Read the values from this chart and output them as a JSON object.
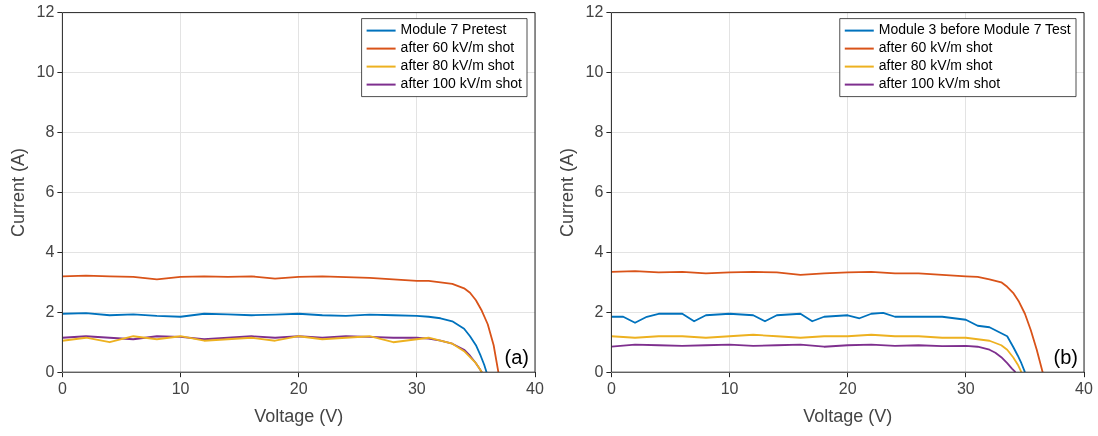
{
  "chart_data": [
    {
      "type": "line",
      "xlabel": "Voltage (V)",
      "ylabel": "Current (A)",
      "xlim": [
        0,
        40
      ],
      "xticks": [
        0,
        10,
        20,
        30,
        40
      ],
      "ylim": [
        0,
        12
      ],
      "yticks": [
        0,
        2,
        4,
        6,
        8,
        10,
        12
      ],
      "grid": true,
      "legend": "top right",
      "marker": "none",
      "annotations": [
        "(a)"
      ],
      "series": [
        {
          "name": "Module 7 Pretest",
          "color": "#0072bd",
          "x": [
            0,
            2,
            4,
            6,
            8,
            10,
            12,
            14,
            16,
            18,
            20,
            22,
            24,
            26,
            28,
            30,
            31,
            32,
            33,
            34,
            34.5,
            35,
            35.4,
            35.7,
            35.9
          ],
          "values": [
            1.95,
            1.97,
            1.9,
            1.93,
            1.88,
            1.85,
            1.95,
            1.93,
            1.9,
            1.92,
            1.95,
            1.9,
            1.88,
            1.92,
            1.9,
            1.88,
            1.85,
            1.8,
            1.7,
            1.45,
            1.2,
            0.9,
            0.55,
            0.25,
            0
          ]
        },
        {
          "name": "after 60 kV/m shot",
          "color": "#d95319",
          "x": [
            0,
            2,
            4,
            6,
            8,
            10,
            12,
            14,
            16,
            18,
            20,
            22,
            24,
            26,
            28,
            30,
            31,
            32,
            33,
            34,
            34.5,
            35,
            35.5,
            36,
            36.5,
            36.9
          ],
          "values": [
            3.2,
            3.22,
            3.2,
            3.18,
            3.1,
            3.18,
            3.2,
            3.18,
            3.2,
            3.12,
            3.18,
            3.2,
            3.17,
            3.15,
            3.1,
            3.05,
            3.05,
            3.0,
            2.95,
            2.8,
            2.65,
            2.4,
            2.05,
            1.6,
            0.9,
            0
          ]
        },
        {
          "name": "after 80 kV/m shot",
          "color": "#edb120",
          "x": [
            0,
            2,
            4,
            6,
            8,
            10,
            12,
            14,
            16,
            18,
            20,
            22,
            24,
            26,
            28,
            30,
            31,
            32,
            33,
            34,
            34.5,
            35,
            35.3,
            35.5
          ],
          "values": [
            1.05,
            1.15,
            1.0,
            1.2,
            1.1,
            1.2,
            1.05,
            1.1,
            1.15,
            1.05,
            1.2,
            1.1,
            1.15,
            1.2,
            1.0,
            1.1,
            1.15,
            1.05,
            0.95,
            0.7,
            0.5,
            0.3,
            0.12,
            0
          ]
        },
        {
          "name": "after 100 kV/m shot",
          "color": "#7e2f8e",
          "x": [
            0,
            2,
            4,
            6,
            8,
            10,
            12,
            14,
            16,
            18,
            20,
            22,
            24,
            26,
            28,
            30,
            31,
            32,
            33,
            34,
            34.5,
            35,
            35.3,
            35.5
          ],
          "values": [
            1.15,
            1.2,
            1.15,
            1.1,
            1.2,
            1.18,
            1.1,
            1.15,
            1.2,
            1.15,
            1.2,
            1.15,
            1.2,
            1.18,
            1.15,
            1.15,
            1.12,
            1.05,
            0.95,
            0.75,
            0.55,
            0.3,
            0.12,
            0
          ]
        }
      ]
    },
    {
      "type": "line",
      "xlabel": "Voltage (V)",
      "ylabel": "Current (A)",
      "xlim": [
        0,
        40
      ],
      "xticks": [
        0,
        10,
        20,
        30,
        40
      ],
      "ylim": [
        0,
        12
      ],
      "yticks": [
        0,
        2,
        4,
        6,
        8,
        10,
        12
      ],
      "grid": true,
      "legend": "top right",
      "marker": "none",
      "annotations": [
        "(b)"
      ],
      "series": [
        {
          "name": "Module 3 before Module 7 Test",
          "color": "#0072bd",
          "x": [
            0,
            1,
            2,
            3,
            4,
            6,
            7,
            8,
            10,
            12,
            13,
            14,
            16,
            17,
            18,
            20,
            21,
            22,
            23,
            24,
            26,
            28,
            30,
            31,
            32,
            33,
            33.5,
            34,
            34.4,
            34.7,
            35
          ],
          "values": [
            1.85,
            1.85,
            1.65,
            1.85,
            1.95,
            1.95,
            1.7,
            1.9,
            1.95,
            1.9,
            1.7,
            1.9,
            1.95,
            1.7,
            1.85,
            1.9,
            1.8,
            1.95,
            1.98,
            1.85,
            1.85,
            1.85,
            1.75,
            1.55,
            1.5,
            1.3,
            1.2,
            0.85,
            0.55,
            0.3,
            0
          ]
        },
        {
          "name": "after 60 kV/m shot",
          "color": "#d95319",
          "x": [
            0,
            2,
            4,
            6,
            8,
            10,
            12,
            14,
            16,
            18,
            20,
            22,
            24,
            26,
            28,
            30,
            31,
            32,
            33,
            33.5,
            34,
            34.5,
            35,
            35.5,
            36,
            36.5
          ],
          "values": [
            3.35,
            3.37,
            3.33,
            3.35,
            3.3,
            3.33,
            3.35,
            3.33,
            3.25,
            3.3,
            3.33,
            3.35,
            3.3,
            3.3,
            3.25,
            3.2,
            3.18,
            3.1,
            3.0,
            2.85,
            2.65,
            2.35,
            1.95,
            1.4,
            0.75,
            0
          ]
        },
        {
          "name": "after 80 kV/m shot",
          "color": "#edb120",
          "x": [
            0,
            2,
            4,
            6,
            8,
            10,
            12,
            14,
            16,
            18,
            20,
            22,
            24,
            26,
            28,
            30,
            31,
            32,
            33,
            33.5,
            34,
            34.4,
            34.7
          ],
          "values": [
            1.2,
            1.15,
            1.2,
            1.2,
            1.15,
            1.2,
            1.25,
            1.2,
            1.15,
            1.2,
            1.2,
            1.25,
            1.2,
            1.2,
            1.15,
            1.15,
            1.1,
            1.05,
            0.9,
            0.75,
            0.5,
            0.25,
            0
          ]
        },
        {
          "name": "after 100 kV/m shot",
          "color": "#7e2f8e",
          "x": [
            0,
            2,
            4,
            6,
            8,
            10,
            12,
            14,
            16,
            18,
            20,
            22,
            24,
            26,
            28,
            30,
            31,
            32,
            32.5,
            33,
            33.5,
            33.9,
            34.2
          ],
          "values": [
            0.85,
            0.92,
            0.9,
            0.88,
            0.9,
            0.92,
            0.88,
            0.9,
            0.92,
            0.85,
            0.9,
            0.92,
            0.88,
            0.9,
            0.87,
            0.88,
            0.85,
            0.75,
            0.65,
            0.5,
            0.3,
            0.12,
            0
          ]
        }
      ]
    }
  ]
}
